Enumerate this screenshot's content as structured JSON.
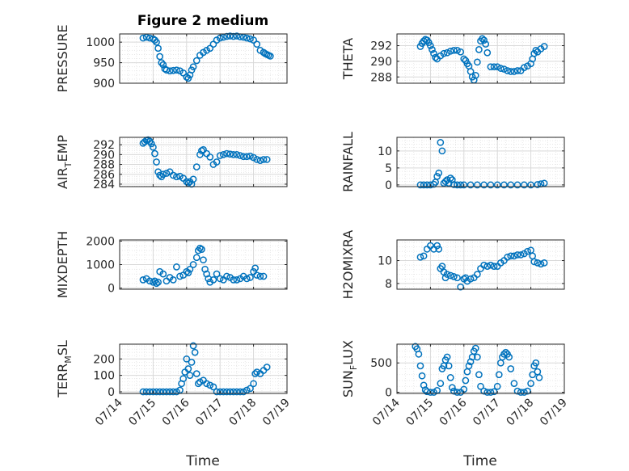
{
  "figure": {
    "title": "Figure 2 medium",
    "xlabel": "Time"
  },
  "colors": {
    "marker": "#0072BD",
    "axis": "#262626",
    "grid": "#d9d9d9",
    "background": "#ffffff"
  },
  "chart_data": [
    {
      "type": "scatter",
      "title": "Figure 2 medium",
      "ylabel": "PRESSURE",
      "xlabel": "",
      "xlim": [
        "07/14",
        "07/19"
      ],
      "ylim": [
        900,
        1020
      ],
      "yticks": [
        900,
        950,
        1000
      ],
      "xticks": [
        "07/14",
        "07/15",
        "07/16",
        "07/17",
        "07/18",
        "07/19"
      ],
      "grid": true,
      "xticklabels_shown": false,
      "x": [
        0.7,
        0.8,
        0.9,
        1.0,
        1.05,
        1.1,
        1.15,
        1.2,
        1.25,
        1.3,
        1.35,
        1.4,
        1.5,
        1.6,
        1.7,
        1.8,
        1.9,
        2.0,
        2.05,
        2.1,
        2.15,
        2.2,
        2.3,
        2.4,
        2.5,
        2.6,
        2.7,
        2.8,
        2.9,
        3.0,
        3.1,
        3.2,
        3.3,
        3.4,
        3.5,
        3.6,
        3.7,
        3.8,
        3.9,
        4.0,
        4.1,
        4.2,
        4.3,
        4.35,
        4.4,
        4.45,
        4.5
      ],
      "y": [
        1010,
        1012,
        1010,
        1008,
        1005,
        1000,
        985,
        965,
        950,
        945,
        935,
        932,
        930,
        931,
        932,
        930,
        925,
        915,
        912,
        920,
        932,
        940,
        955,
        968,
        975,
        980,
        985,
        995,
        1005,
        1010,
        1012,
        1014,
        1015,
        1014,
        1015,
        1013,
        1012,
        1010,
        1008,
        1005,
        995,
        980,
        975,
        972,
        970,
        968,
        966
      ]
    },
    {
      "type": "scatter",
      "title": "",
      "ylabel": "THETA",
      "xlabel": "",
      "xlim": [
        "07/14",
        "07/19"
      ],
      "ylim": [
        287.2,
        293.5
      ],
      "yticks": [
        288,
        290,
        292
      ],
      "xticks": [
        "07/14",
        "07/15",
        "07/16",
        "07/17",
        "07/18",
        "07/19"
      ],
      "grid": true,
      "xticklabels_shown": false,
      "x": [
        0.7,
        0.75,
        0.8,
        0.85,
        0.9,
        0.95,
        1.0,
        1.05,
        1.1,
        1.15,
        1.2,
        1.3,
        1.4,
        1.5,
        1.6,
        1.7,
        1.8,
        1.9,
        2.0,
        2.05,
        2.1,
        2.15,
        2.2,
        2.25,
        2.3,
        2.35,
        2.4,
        2.45,
        2.5,
        2.55,
        2.6,
        2.65,
        2.7,
        2.8,
        2.9,
        3.0,
        3.1,
        3.2,
        3.3,
        3.4,
        3.5,
        3.6,
        3.7,
        3.8,
        3.9,
        4.0,
        4.05,
        4.1,
        4.15,
        4.2,
        4.3,
        4.4
      ],
      "y": [
        291.9,
        292.3,
        292.6,
        292.8,
        292.7,
        292.4,
        292.0,
        291.5,
        291.0,
        290.5,
        290.3,
        290.7,
        291.0,
        291.1,
        291.3,
        291.4,
        291.4,
        291.2,
        290.3,
        290.1,
        289.7,
        289.4,
        288.7,
        288.0,
        287.6,
        288.2,
        289.9,
        291.5,
        292.6,
        292.9,
        292.7,
        292.2,
        291.1,
        289.3,
        289.3,
        289.3,
        289.1,
        289.0,
        288.8,
        288.7,
        288.7,
        288.8,
        288.8,
        289.2,
        289.4,
        289.7,
        290.3,
        291.0,
        291.4,
        291.2,
        291.6,
        291.9
      ]
    },
    {
      "type": "scatter",
      "title": "",
      "ylabel": "AIR_TEMP",
      "xlabel": "",
      "xlim": [
        "07/14",
        "07/19"
      ],
      "ylim": [
        283.5,
        293.5
      ],
      "yticks": [
        284,
        286,
        288,
        290,
        292
      ],
      "xticks": [
        "07/14",
        "07/15",
        "07/16",
        "07/17",
        "07/18",
        "07/19"
      ],
      "grid": true,
      "xticklabels_shown": false,
      "x": [
        0.7,
        0.75,
        0.8,
        0.85,
        0.9,
        0.95,
        1.0,
        1.05,
        1.1,
        1.15,
        1.2,
        1.25,
        1.3,
        1.4,
        1.5,
        1.6,
        1.7,
        1.8,
        1.9,
        2.0,
        2.05,
        2.1,
        2.15,
        2.2,
        2.3,
        2.4,
        2.45,
        2.5,
        2.6,
        2.7,
        2.8,
        2.9,
        3.0,
        3.1,
        3.2,
        3.3,
        3.4,
        3.5,
        3.6,
        3.7,
        3.8,
        3.9,
        4.0,
        4.1,
        4.2,
        4.3,
        4.4
      ],
      "y": [
        292.3,
        292.6,
        292.9,
        293.0,
        292.7,
        292.2,
        291.5,
        290.2,
        288.5,
        286.5,
        285.8,
        285.5,
        286.0,
        286.2,
        286.5,
        285.8,
        285.5,
        285.6,
        285.2,
        284.5,
        284.2,
        284.5,
        284.0,
        285.0,
        287.5,
        290.0,
        290.8,
        291.0,
        290.2,
        289.5,
        288.0,
        288.5,
        289.8,
        290.0,
        290.2,
        290.1,
        290.0,
        290.0,
        289.8,
        289.6,
        289.6,
        289.7,
        289.4,
        289.0,
        288.8,
        289.0,
        289.0
      ]
    },
    {
      "type": "scatter",
      "title": "",
      "ylabel": "RAINFALL",
      "xlabel": "",
      "xlim": [
        "07/14",
        "07/19"
      ],
      "ylim": [
        -0.5,
        14
      ],
      "yticks": [
        0,
        5,
        10
      ],
      "xticks": [
        "07/14",
        "07/15",
        "07/16",
        "07/17",
        "07/18",
        "07/19"
      ],
      "grid": true,
      "xticklabels_shown": false,
      "x": [
        0.7,
        0.8,
        0.9,
        1.0,
        1.1,
        1.15,
        1.2,
        1.25,
        1.3,
        1.35,
        1.4,
        1.45,
        1.5,
        1.55,
        1.6,
        1.65,
        1.7,
        1.8,
        1.9,
        2.0,
        2.2,
        2.4,
        2.6,
        2.8,
        3.0,
        3.2,
        3.4,
        3.6,
        3.8,
        4.0,
        4.2,
        4.3,
        4.4
      ],
      "y": [
        0,
        0,
        0,
        0,
        0.2,
        0.8,
        2.5,
        3.5,
        12.5,
        10,
        0.5,
        1.0,
        1.5,
        0.5,
        2.0,
        1.5,
        0.1,
        0,
        0,
        0,
        0,
        0,
        0,
        0,
        0,
        0,
        0,
        0,
        0,
        0,
        0.1,
        0.3,
        0.5
      ]
    },
    {
      "type": "scatter",
      "title": "",
      "ylabel": "MIXDEPTH",
      "xlabel": "",
      "xlim": [
        "07/14",
        "07/19"
      ],
      "ylim": [
        -50,
        2050
      ],
      "yticks": [
        0,
        1000,
        2000
      ],
      "xticks": [
        "07/14",
        "07/15",
        "07/16",
        "07/17",
        "07/18",
        "07/19"
      ],
      "grid": true,
      "xticklabels_shown": false,
      "x": [
        0.7,
        0.8,
        0.9,
        1.0,
        1.05,
        1.1,
        1.15,
        1.2,
        1.3,
        1.4,
        1.5,
        1.6,
        1.7,
        1.8,
        1.9,
        2.0,
        2.05,
        2.1,
        2.2,
        2.3,
        2.35,
        2.4,
        2.45,
        2.5,
        2.55,
        2.6,
        2.65,
        2.7,
        2.8,
        2.9,
        3.0,
        3.1,
        3.2,
        3.3,
        3.4,
        3.5,
        3.6,
        3.7,
        3.8,
        3.9,
        4.0,
        4.05,
        4.1,
        4.2,
        4.3
      ],
      "y": [
        350,
        400,
        300,
        250,
        300,
        200,
        250,
        700,
        600,
        300,
        450,
        350,
        900,
        500,
        550,
        700,
        650,
        800,
        1000,
        1300,
        1600,
        1700,
        1650,
        1200,
        800,
        600,
        400,
        250,
        350,
        600,
        400,
        350,
        500,
        450,
        350,
        350,
        400,
        500,
        400,
        450,
        700,
        850,
        550,
        500,
        500
      ]
    },
    {
      "type": "scatter",
      "title": "",
      "ylabel": "H2OMIXRA",
      "xlabel": "",
      "xlim": [
        "07/14",
        "07/19"
      ],
      "ylim": [
        7.5,
        11.8
      ],
      "yticks": [
        8,
        10
      ],
      "xticks": [
        "07/14",
        "07/15",
        "07/16",
        "07/17",
        "07/18",
        "07/19"
      ],
      "grid": true,
      "xticklabels_shown": false,
      "x": [
        0.7,
        0.8,
        0.9,
        1.0,
        1.1,
        1.2,
        1.25,
        1.3,
        1.35,
        1.4,
        1.45,
        1.5,
        1.6,
        1.7,
        1.8,
        1.9,
        2.0,
        2.05,
        2.1,
        2.2,
        2.3,
        2.4,
        2.5,
        2.6,
        2.7,
        2.8,
        2.9,
        3.0,
        3.1,
        3.2,
        3.3,
        3.4,
        3.5,
        3.6,
        3.7,
        3.8,
        3.9,
        4.0,
        4.05,
        4.1,
        4.2,
        4.3,
        4.4
      ],
      "y": [
        10.3,
        10.4,
        11.0,
        11.3,
        11.0,
        11.3,
        11.0,
        9.3,
        9.5,
        9.0,
        8.5,
        8.8,
        8.7,
        8.6,
        8.5,
        7.7,
        8.4,
        8.5,
        8.2,
        8.4,
        8.5,
        8.8,
        9.3,
        9.6,
        9.5,
        9.6,
        9.5,
        9.5,
        9.8,
        10.0,
        10.3,
        10.4,
        10.4,
        10.5,
        10.5,
        10.6,
        10.8,
        10.9,
        10.4,
        9.9,
        9.8,
        9.7,
        9.8
      ]
    },
    {
      "type": "scatter",
      "title": "",
      "ylabel": "TERR_MSL",
      "xlabel": "Time",
      "xlim": [
        "07/14",
        "07/19"
      ],
      "ylim": [
        -10,
        290
      ],
      "yticks": [
        0,
        100,
        200
      ],
      "xticks": [
        "07/14",
        "07/15",
        "07/16",
        "07/17",
        "07/18",
        "07/19"
      ],
      "grid": true,
      "xticklabels_shown": true,
      "x": [
        0.7,
        0.8,
        0.9,
        1.0,
        1.1,
        1.2,
        1.3,
        1.4,
        1.5,
        1.6,
        1.7,
        1.8,
        1.85,
        1.9,
        1.95,
        2.0,
        2.05,
        2.1,
        2.15,
        2.2,
        2.25,
        2.3,
        2.35,
        2.4,
        2.5,
        2.6,
        2.7,
        2.8,
        2.9,
        3.0,
        3.1,
        3.2,
        3.3,
        3.4,
        3.5,
        3.6,
        3.7,
        3.8,
        3.9,
        4.0,
        4.05,
        4.1,
        4.2,
        4.3,
        4.4
      ],
      "y": [
        0,
        0,
        0,
        0,
        0,
        0,
        0,
        0,
        0,
        0,
        0,
        10,
        50,
        80,
        120,
        200,
        140,
        100,
        180,
        280,
        240,
        110,
        50,
        60,
        70,
        50,
        40,
        30,
        0,
        0,
        0,
        0,
        0,
        0,
        0,
        0,
        0,
        10,
        20,
        50,
        110,
        120,
        110,
        130,
        150
      ]
    },
    {
      "type": "scatter",
      "title": "",
      "ylabel": "SUN_FLUX",
      "xlabel": "Time",
      "xlim": [
        "07/14",
        "07/19"
      ],
      "ylim": [
        -20,
        820
      ],
      "yticks": [
        0,
        500
      ],
      "xticks": [
        "07/14",
        "07/15",
        "07/16",
        "07/17",
        "07/18",
        "07/19"
      ],
      "grid": true,
      "xticklabels_shown": true,
      "x": [
        0.55,
        0.6,
        0.65,
        0.7,
        0.75,
        0.8,
        0.85,
        0.9,
        1.0,
        1.1,
        1.2,
        1.3,
        1.35,
        1.4,
        1.45,
        1.5,
        1.55,
        1.6,
        1.65,
        1.7,
        1.8,
        1.9,
        2.0,
        2.05,
        2.1,
        2.15,
        2.2,
        2.25,
        2.3,
        2.35,
        2.4,
        2.45,
        2.5,
        2.6,
        2.7,
        2.8,
        2.9,
        3.0,
        3.05,
        3.1,
        3.15,
        3.2,
        3.25,
        3.3,
        3.35,
        3.4,
        3.5,
        3.6,
        3.7,
        3.8,
        3.9,
        4.0,
        4.05,
        4.1,
        4.15,
        4.2,
        4.25
      ],
      "y": [
        780,
        740,
        650,
        450,
        280,
        120,
        40,
        10,
        0,
        0,
        30,
        150,
        400,
        450,
        550,
        600,
        450,
        250,
        80,
        20,
        0,
        0,
        50,
        200,
        350,
        450,
        520,
        600,
        700,
        750,
        600,
        300,
        100,
        20,
        0,
        0,
        10,
        100,
        300,
        500,
        600,
        650,
        680,
        650,
        600,
        400,
        150,
        20,
        0,
        0,
        20,
        150,
        300,
        450,
        500,
        350,
        250
      ]
    }
  ]
}
